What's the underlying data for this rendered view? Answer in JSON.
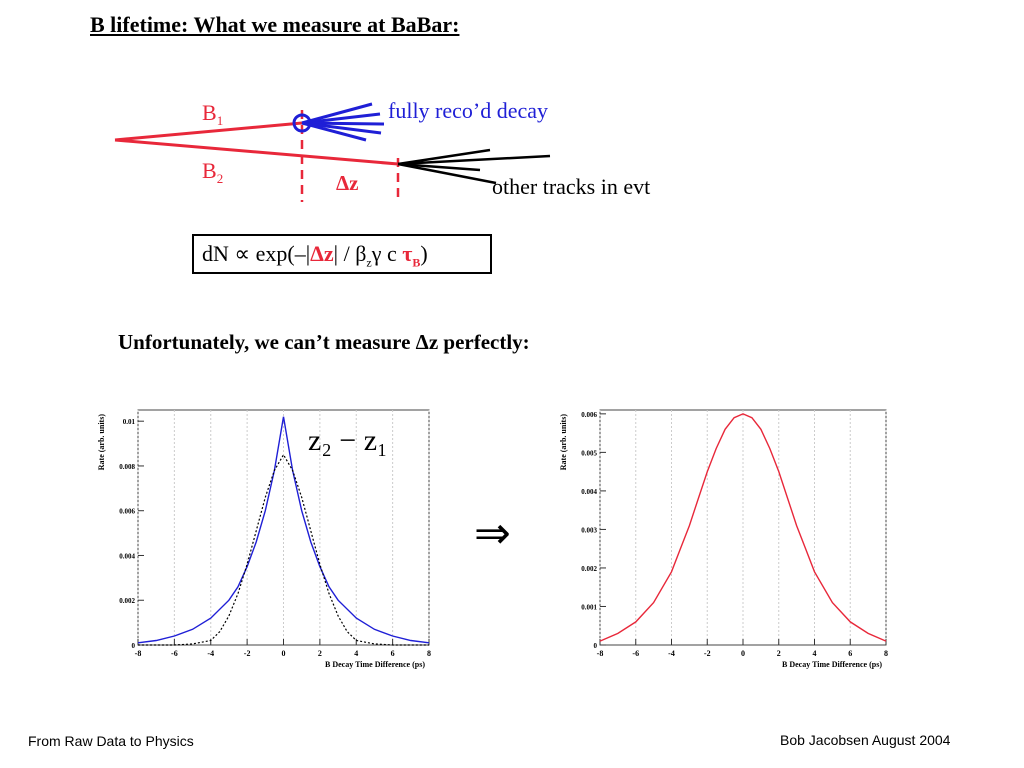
{
  "slide": {
    "title": "B lifetime: What we measure at BaBar:",
    "subtitle": "Unfortunately, we can’t measure Δz perfectly:",
    "footer_left": "From Raw Data to Physics",
    "footer_right": "Bob Jacobsen August 2004"
  },
  "diagram": {
    "b1_label": "B",
    "b1_sub": "1",
    "b2_label": "B",
    "b2_sub": "2",
    "decay1_label": "fully reco’d decay",
    "decay2_label": "other tracks in evt",
    "dz_label": "Δz",
    "colors": {
      "red": "#e8283a",
      "blue": "#1f1fd6",
      "black": "#000000"
    }
  },
  "formula": {
    "prefix": "dN ∝ exp(–|",
    "dz": "Δz",
    "middle": "| / β",
    "beta_sub": "z",
    "gamma_c": "γ c ",
    "tau": "τ",
    "tau_sub": "B",
    "suffix": ")"
  },
  "arrow_symbol": "⇒",
  "chart_data": [
    {
      "type": "line",
      "annotation": "z₂ − z₁",
      "xlabel": "B Decay Time Difference (ps)",
      "ylabel": "Rate (arb. units)",
      "xlim": [
        -8,
        8
      ],
      "ylim": [
        0,
        0.0105
      ],
      "xticks": [
        "-8",
        "-6",
        "-4",
        "-2",
        "0",
        "2",
        "4",
        "6",
        "8"
      ],
      "yticks": [
        "0",
        "0.002",
        "0.004",
        "0.006",
        "0.008",
        "0.01"
      ],
      "grid": true,
      "series": [
        {
          "style": "solid",
          "color": "#1f1fd6",
          "x": [
            -8,
            -7,
            -6,
            -5,
            -4,
            -3,
            -2.5,
            -2,
            -1.5,
            -1,
            -0.5,
            0,
            0.5,
            1,
            1.5,
            2,
            2.5,
            3,
            4,
            5,
            6,
            7,
            8
          ],
          "y": [
            0.0001,
            0.0002,
            0.0004,
            0.0007,
            0.0012,
            0.002,
            0.0026,
            0.0035,
            0.0046,
            0.006,
            0.0078,
            0.0102,
            0.0078,
            0.006,
            0.0046,
            0.0035,
            0.0026,
            0.002,
            0.0012,
            0.0007,
            0.0004,
            0.0002,
            0.0001
          ]
        },
        {
          "style": "dotted",
          "color": "#000000",
          "x": [
            -8,
            -6,
            -5,
            -4,
            -3.5,
            -3,
            -2.5,
            -2,
            -1.5,
            -1,
            -0.5,
            0,
            0.5,
            1,
            1.5,
            2,
            2.5,
            3,
            3.5,
            4,
            5,
            6,
            8
          ],
          "y": [
            0,
            0,
            5e-05,
            0.0002,
            0.0006,
            0.0013,
            0.0023,
            0.0036,
            0.0051,
            0.0066,
            0.0078,
            0.0085,
            0.0078,
            0.0066,
            0.0051,
            0.0036,
            0.0023,
            0.0013,
            0.0006,
            0.0002,
            5e-05,
            0,
            0
          ]
        }
      ]
    },
    {
      "type": "line",
      "xlabel": "B Decay Time Difference (ps)",
      "ylabel": "Rate (arb. units)",
      "xlim": [
        -8,
        8
      ],
      "ylim": [
        0,
        0.0061
      ],
      "xticks": [
        "-8",
        "-6",
        "-4",
        "-2",
        "0",
        "2",
        "4",
        "6",
        "8"
      ],
      "yticks": [
        "0",
        "0.001",
        "0.002",
        "0.003",
        "0.004",
        "0.005",
        "0.006"
      ],
      "grid": true,
      "series": [
        {
          "style": "solid",
          "color": "#e8283a",
          "x": [
            -8,
            -7,
            -6,
            -5,
            -4,
            -3.5,
            -3,
            -2.5,
            -2,
            -1.5,
            -1,
            -0.5,
            0,
            0.5,
            1,
            1.5,
            2,
            2.5,
            3,
            3.5,
            4,
            5,
            6,
            7,
            8
          ],
          "y": [
            0.0001,
            0.0003,
            0.0006,
            0.0011,
            0.0019,
            0.0025,
            0.0031,
            0.0038,
            0.0045,
            0.0051,
            0.0056,
            0.0059,
            0.006,
            0.0059,
            0.0056,
            0.0051,
            0.0045,
            0.0038,
            0.0031,
            0.0025,
            0.0019,
            0.0011,
            0.0006,
            0.0003,
            0.0001
          ]
        }
      ]
    }
  ]
}
